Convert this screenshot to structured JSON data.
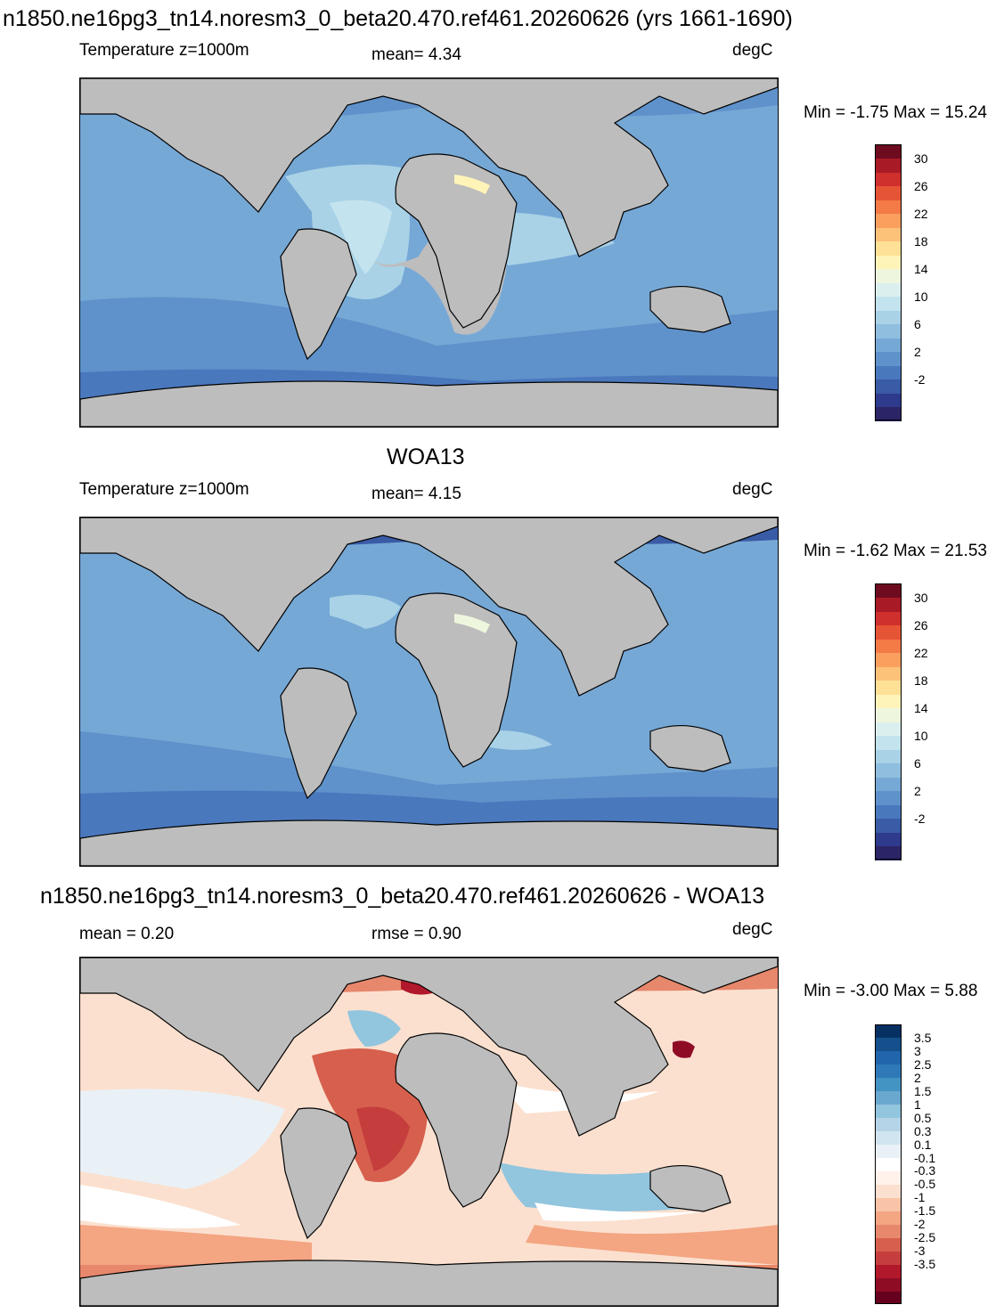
{
  "panels": [
    {
      "title": "n1850.ne16pg3_tn14.noresm3_0_beta20.470.ref461.20260626 (yrs 1661-1690)",
      "left_label": "Temperature z=1000m",
      "center_label": "mean=   4.34",
      "units": "degC",
      "minmax": "Min =  -1.75 Max =  15.24",
      "colorbar": {
        "colors": [
          "#2b2566",
          "#2e3a8c",
          "#3a5ba6",
          "#4a78bd",
          "#5f92cb",
          "#76a8d6",
          "#8fbedf",
          "#a9d2e7",
          "#c3e3ee",
          "#dcefef",
          "#eef6dd",
          "#fff4b8",
          "#fee196",
          "#fdc27a",
          "#fb9f5e",
          "#f47a46",
          "#e65436",
          "#cf302d",
          "#a81a26",
          "#6e0b1f"
        ],
        "labels": [
          "30",
          "26",
          "22",
          "18",
          "14",
          "10",
          "6",
          "2",
          "-2"
        ]
      }
    },
    {
      "title": "WOA13",
      "left_label": "Temperature z=1000m",
      "center_label": "mean=   4.15",
      "units": "degC",
      "minmax": "Min =  -1.62 Max =  21.53",
      "colorbar": {
        "colors": [
          "#2b2566",
          "#2e3a8c",
          "#3a5ba6",
          "#4a78bd",
          "#5f92cb",
          "#76a8d6",
          "#8fbedf",
          "#a9d2e7",
          "#c3e3ee",
          "#dcefef",
          "#eef6dd",
          "#fff4b8",
          "#fee196",
          "#fdc27a",
          "#fb9f5e",
          "#f47a46",
          "#e65436",
          "#cf302d",
          "#a81a26",
          "#6e0b1f"
        ],
        "labels": [
          "30",
          "26",
          "22",
          "18",
          "14",
          "10",
          "6",
          "2",
          "-2"
        ]
      }
    },
    {
      "title": "n1850.ne16pg3_tn14.noresm3_0_beta20.470.ref461.20260626 - WOA13",
      "left_label": "mean =   0.20",
      "center_label": "rmse =   0.90",
      "units": "degC",
      "minmax": "Min =  -3.00 Max =   5.88",
      "colorbar": {
        "colors": [
          "#67001f",
          "#8f0c25",
          "#b2182b",
          "#c53e3d",
          "#d6604d",
          "#e7876c",
          "#f4a582",
          "#f8c3a6",
          "#fbe0cf",
          "#fff2ea",
          "#ffffff",
          "#e9f1f7",
          "#d1e5f0",
          "#b5d4e8",
          "#92c5de",
          "#6aa8cf",
          "#4393c3",
          "#3079b8",
          "#2166ac",
          "#154f8c",
          "#053061"
        ],
        "labels": [
          "3.5",
          "3",
          "2.5",
          "2",
          "1.5",
          "1",
          "0.5",
          "0.3",
          "0.1",
          "-0.1",
          "-0.3",
          "-0.5",
          "-1",
          "-1.5",
          "-2",
          "-2.5",
          "-3",
          "-3.5"
        ]
      }
    }
  ]
}
